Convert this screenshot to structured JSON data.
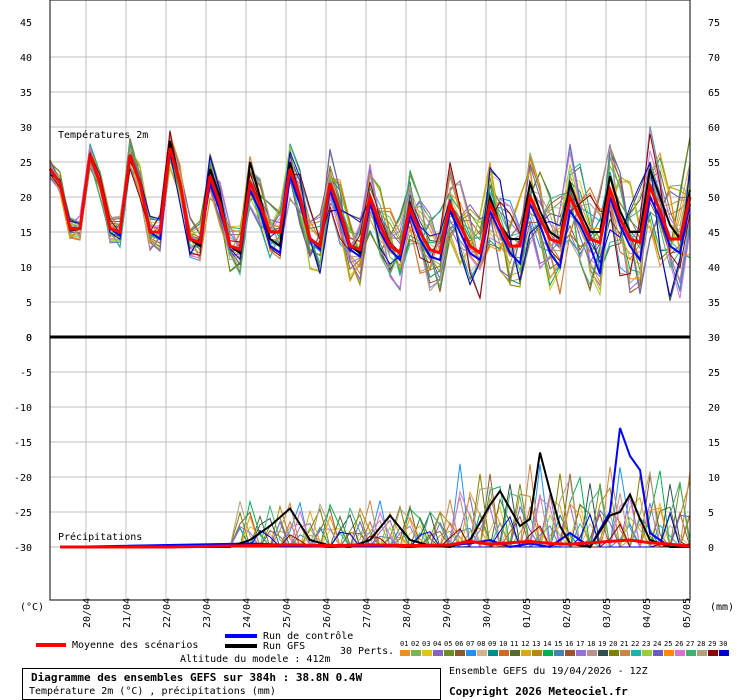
{
  "chart_data": [
    {
      "type": "line",
      "panel": "temperature",
      "title": "Températures 2m",
      "ylim_left": [
        0,
        45
      ],
      "ylim_right": [
        30,
        75
      ],
      "yticks_left": [
        "45",
        "40",
        "35",
        "30",
        "25",
        "20",
        "15",
        "10",
        "5",
        "0"
      ],
      "yticks_right": [
        "75",
        "70",
        "65",
        "60",
        "55",
        "50",
        "45",
        "40",
        "35"
      ],
      "x_range_days": [
        0,
        16
      ],
      "grid": true,
      "series": [
        {
          "name": "Moyenne des scénarios",
          "color": "#ff0000",
          "x": [
            0,
            0.25,
            0.5,
            0.75,
            1,
            1.25,
            1.5,
            1.75,
            2,
            2.25,
            2.5,
            2.75,
            3,
            3.25,
            3.5,
            3.75,
            4,
            4.25,
            4.5,
            4.75,
            5,
            5.25,
            5.5,
            5.75,
            6,
            6.25,
            6.5,
            6.75,
            7,
            7.25,
            7.5,
            7.75,
            8,
            8.25,
            8.5,
            8.75,
            9,
            9.25,
            9.5,
            9.75,
            10,
            10.25,
            10.5,
            10.75,
            11,
            11.25,
            11.5,
            11.75,
            12,
            12.25,
            12.5,
            12.75,
            13,
            13.25,
            13.5,
            13.75,
            14,
            14.25,
            14.5,
            14.75,
            15,
            15.25,
            15.5,
            15.75,
            16
          ],
          "y": [
            24,
            22,
            15.5,
            15.5,
            26,
            22,
            15.5,
            15,
            26,
            22,
            15,
            15,
            27,
            22,
            14,
            13.5,
            23,
            19,
            13,
            12.5,
            22,
            19,
            15,
            15,
            24,
            20,
            14,
            13,
            22,
            18,
            13,
            12.5,
            20,
            16,
            13,
            12,
            18.5,
            15,
            12.5,
            12,
            19,
            16,
            13,
            12,
            19,
            16,
            13,
            13,
            20,
            17,
            14,
            13.5,
            20,
            17,
            14,
            13.5,
            21,
            17,
            14,
            13.5,
            21.5,
            18,
            14,
            14,
            20
          ]
        },
        {
          "name": "Run GFS",
          "color": "#000000",
          "x": [
            0,
            0.25,
            0.5,
            0.75,
            1,
            1.25,
            1.5,
            1.75,
            2,
            2.25,
            2.5,
            2.75,
            3,
            3.25,
            3.5,
            3.75,
            4,
            4.25,
            4.5,
            4.75,
            5,
            5.25,
            5.5,
            5.75,
            6,
            6.25,
            6.5,
            6.75,
            7,
            7.25,
            7.5,
            7.75,
            8,
            8.25,
            8.5,
            8.75,
            9,
            9.25,
            9.5,
            9.75,
            10,
            10.25,
            10.5,
            10.75,
            11,
            11.25,
            11.5,
            11.75,
            12,
            12.25,
            12.5,
            12.75,
            13,
            13.25,
            13.5,
            13.75,
            14,
            14.25,
            14.5,
            14.75,
            15,
            15.25,
            15.5,
            15.75,
            16
          ],
          "y": [
            24,
            22,
            15.5,
            15.5,
            26,
            22,
            15.5,
            15,
            26,
            22,
            15,
            15,
            28,
            22,
            14,
            13,
            24,
            20,
            13,
            12,
            25,
            20,
            14,
            13,
            25,
            20,
            14,
            13,
            22,
            18,
            13,
            12,
            20,
            16,
            13,
            12,
            19,
            15,
            12.5,
            12,
            19,
            16,
            13,
            12,
            20,
            16,
            14,
            14,
            22,
            18,
            15,
            14,
            22,
            18,
            15,
            15,
            23,
            18,
            15,
            15,
            24,
            20,
            16,
            14,
            21
          ]
        },
        {
          "name": "Run de contrôle",
          "color": "#0000ff",
          "x": [
            0,
            0.25,
            0.5,
            0.75,
            1,
            1.25,
            1.5,
            1.75,
            2,
            2.25,
            2.5,
            2.75,
            3,
            3.25,
            3.5,
            3.75,
            4,
            4.25,
            4.5,
            4.75,
            5,
            5.25,
            5.5,
            5.75,
            6,
            6.25,
            6.5,
            6.75,
            7,
            7.25,
            7.5,
            7.75,
            8,
            8.25,
            8.5,
            8.75,
            9,
            9.25,
            9.5,
            9.75,
            10,
            10.25,
            10.5,
            10.75,
            11,
            11.25,
            11.5,
            11.75,
            12,
            12.25,
            12.5,
            12.75,
            13,
            13.25,
            13.5,
            13.75,
            14,
            14.25,
            14.5,
            14.75,
            15,
            15.25,
            15.5,
            15.75,
            16
          ],
          "y": [
            24,
            22,
            15.5,
            15.5,
            26,
            22,
            15.5,
            14.5,
            26,
            22,
            15,
            14,
            27,
            22,
            14,
            13,
            22,
            18,
            13,
            12,
            21,
            18,
            13,
            12,
            23,
            19,
            14,
            12.5,
            21,
            17,
            12.5,
            11.5,
            19,
            15,
            12.5,
            11,
            17.5,
            14,
            11.5,
            11,
            18,
            15,
            12,
            11,
            18,
            15,
            12,
            10.5,
            19,
            16,
            12,
            10,
            18,
            16,
            13,
            9,
            20,
            16,
            13,
            11,
            20,
            17,
            13,
            12,
            19
          ]
        }
      ]
    },
    {
      "type": "line",
      "panel": "precipitation",
      "title": "Précipitations",
      "ylim_left": [
        -30,
        0
      ],
      "ylim_right": [
        0,
        30
      ],
      "yticks_left": [
        "0",
        "-5",
        "-10",
        "-15",
        "-20",
        "-25",
        "-30"
      ],
      "yticks_right": [
        "30",
        "25",
        "20",
        "15",
        "10",
        "5",
        "0"
      ],
      "ylabel_left": "(°C)",
      "ylabel_right": "(mm)",
      "x_range_days": [
        0,
        16
      ],
      "xticks": [
        "20/04",
        "21/04",
        "22/04",
        "23/04",
        "24/04",
        "25/04",
        "26/04",
        "27/04",
        "28/04",
        "29/04",
        "30/04",
        "01/05",
        "02/05",
        "03/05",
        "04/05",
        "05/05"
      ],
      "grid": true,
      "series": [
        {
          "name": "Moyenne des scénarios",
          "color": "#ff0000",
          "x": [
            0.25,
            3,
            5,
            6,
            7,
            8,
            9,
            10,
            10.5,
            11,
            11.5,
            12,
            12.5,
            13,
            14,
            14.5,
            15,
            15.5,
            16
          ],
          "y": [
            0,
            0,
            0.2,
            0.3,
            0.2,
            0.3,
            0.2,
            0.3,
            0.8,
            0.4,
            0.6,
            0.8,
            0.5,
            0.4,
            0.8,
            1.0,
            0.6,
            0.4,
            0.1
          ]
        },
        {
          "name": "Run GFS",
          "color": "#000000",
          "x": [
            0.25,
            4.5,
            5,
            5.5,
            6,
            6.5,
            7,
            7.5,
            8,
            8.5,
            9,
            9.5,
            10,
            10.5,
            11,
            11.25,
            11.5,
            11.75,
            12,
            12.25,
            12.5,
            12.75,
            13,
            13.5,
            14,
            14.25,
            14.5,
            14.75,
            15,
            15.5,
            16
          ],
          "y": [
            0,
            0,
            1,
            3,
            5.5,
            1,
            0.2,
            0,
            1,
            4.5,
            1,
            0.2,
            0,
            1,
            6,
            8,
            5.5,
            3,
            4,
            13.5,
            8,
            3,
            0.5,
            0,
            4.5,
            5,
            7.5,
            4,
            1,
            0,
            0
          ]
        },
        {
          "name": "Run de contrôle",
          "color": "#0000ff",
          "x": [
            0.25,
            5,
            6,
            7,
            8,
            9,
            10,
            10.5,
            11,
            11.5,
            12,
            12.5,
            13,
            13.5,
            14,
            14.25,
            14.5,
            14.75,
            15,
            15.5,
            16
          ],
          "y": [
            0,
            0.5,
            0.3,
            0,
            0.2,
            0,
            0.3,
            0.5,
            1,
            0,
            0.5,
            0,
            2,
            0,
            5,
            17,
            13,
            11,
            2,
            0,
            0
          ]
        }
      ]
    }
  ],
  "legend": {
    "mean_label": "Moyenne des scénarios",
    "control_label": "Run de contrôle",
    "gfs_label": "Run GFS",
    "perts_label": "30 Perts.",
    "altitude": "Altitude du modele : 412m",
    "perts": [
      {
        "id": "01",
        "color": "#f28c28"
      },
      {
        "id": "02",
        "color": "#7ab648"
      },
      {
        "id": "03",
        "color": "#e0c51a"
      },
      {
        "id": "04",
        "color": "#8860d0"
      },
      {
        "id": "05",
        "color": "#6b8e23"
      },
      {
        "id": "06",
        "color": "#8b5a2b"
      },
      {
        "id": "07",
        "color": "#1e90ff"
      },
      {
        "id": "08",
        "color": "#d2b48c"
      },
      {
        "id": "09",
        "color": "#008b8b"
      },
      {
        "id": "10",
        "color": "#d2691e"
      },
      {
        "id": "11",
        "color": "#556b2f"
      },
      {
        "id": "12",
        "color": "#daa520"
      },
      {
        "id": "13",
        "color": "#b8860b"
      },
      {
        "id": "14",
        "color": "#00b050"
      },
      {
        "id": "15",
        "color": "#4682b4"
      },
      {
        "id": "16",
        "color": "#a0522d"
      },
      {
        "id": "17",
        "color": "#9370db"
      },
      {
        "id": "18",
        "color": "#bc8f8f"
      },
      {
        "id": "19",
        "color": "#2f4f4f"
      },
      {
        "id": "20",
        "color": "#808000"
      },
      {
        "id": "21",
        "color": "#cd853f"
      },
      {
        "id": "22",
        "color": "#20b2aa"
      },
      {
        "id": "23",
        "color": "#9acd32"
      },
      {
        "id": "24",
        "color": "#6a5acd"
      },
      {
        "id": "25",
        "color": "#ff8c00"
      },
      {
        "id": "26",
        "color": "#da70d6"
      },
      {
        "id": "27",
        "color": "#3cb371"
      },
      {
        "id": "28",
        "color": "#b0a080"
      },
      {
        "id": "29",
        "color": "#8b0000"
      },
      {
        "id": "30",
        "color": "#0000cd"
      }
    ]
  },
  "footer": {
    "title": "Diagramme des ensembles GEFS sur 384h : 38.8N 0.4W",
    "subtitle": "Température 2m (°C) , précipitations (mm)",
    "run": "Ensemble GEFS du 19/04/2026 - 12Z",
    "copyright": "Copyright 2026 Meteociel.fr"
  }
}
